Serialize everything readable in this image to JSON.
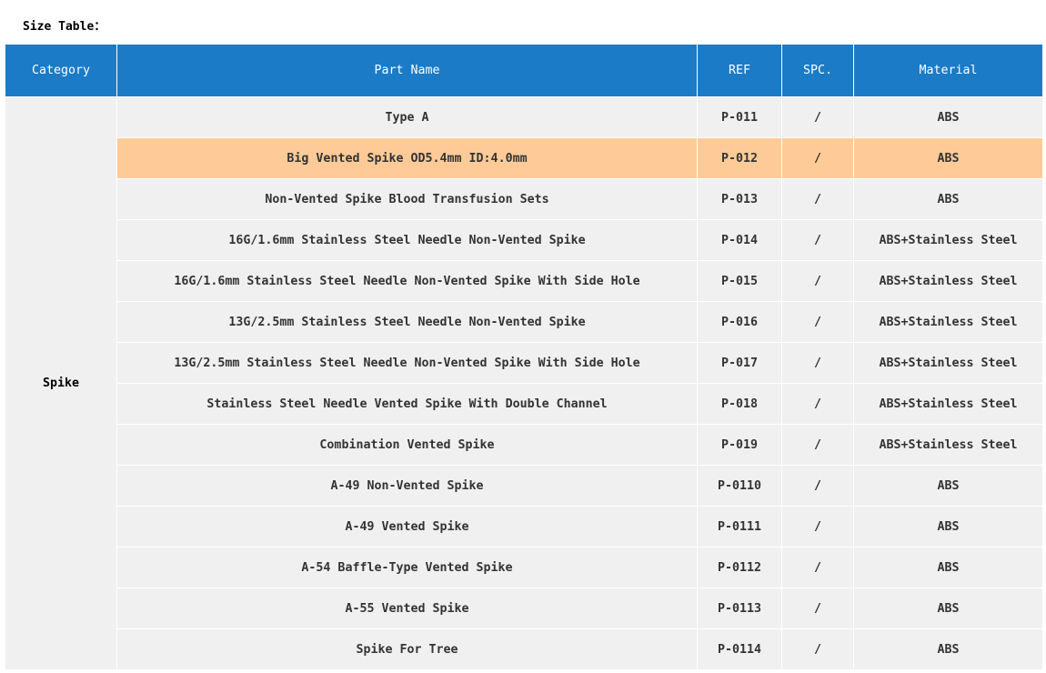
{
  "title": "Size Table：",
  "colors": {
    "header": "#1b7bc7",
    "highlight": "#fecb98",
    "cell": "#f0f0f0"
  },
  "headers": [
    "Category",
    "Part Name",
    "REF",
    "SPC.",
    "Material"
  ],
  "category": "Spike",
  "highlighted_row": 1,
  "rows": [
    {
      "name": "Type A",
      "ref": "P-011",
      "spc": "/",
      "material": "ABS"
    },
    {
      "name": "Big Vented Spike OD5.4mm ID:4.0mm",
      "ref": "P-012",
      "spc": "/",
      "material": "ABS"
    },
    {
      "name": "Non-Vented Spike Blood Transfusion Sets",
      "ref": "P-013",
      "spc": "/",
      "material": "ABS"
    },
    {
      "name": "16G/1.6mm Stainless Steel Needle Non-Vented Spike",
      "ref": "P-014",
      "spc": "/",
      "material": "ABS+Stainless Steel"
    },
    {
      "name": "16G/1.6mm Stainless Steel Needle Non-Vented Spike With Side Hole",
      "ref": "P-015",
      "spc": "/",
      "material": "ABS+Stainless Steel"
    },
    {
      "name": "13G/2.5mm Stainless Steel Needle Non-Vented Spike",
      "ref": "P-016",
      "spc": "/",
      "material": "ABS+Stainless Steel"
    },
    {
      "name": "13G/2.5mm Stainless Steel Needle Non-Vented Spike With Side Hole",
      "ref": "P-017",
      "spc": "/",
      "material": "ABS+Stainless Steel"
    },
    {
      "name": "Stainless Steel Needle Vented Spike With Double Channel",
      "ref": "P-018",
      "spc": "/",
      "material": "ABS+Stainless Steel"
    },
    {
      "name": "Combination Vented Spike",
      "ref": "P-019",
      "spc": "/",
      "material": "ABS+Stainless Steel"
    },
    {
      "name": "A-49 Non-Vented Spike",
      "ref": "P-0110",
      "spc": "/",
      "material": "ABS"
    },
    {
      "name": "A-49 Vented Spike",
      "ref": "P-0111",
      "spc": "/",
      "material": "ABS"
    },
    {
      "name": "A-54 Baffle-Type Vented Spike",
      "ref": "P-0112",
      "spc": "/",
      "material": "ABS"
    },
    {
      "name": "A-55 Vented Spike",
      "ref": "P-0113",
      "spc": "/",
      "material": "ABS"
    },
    {
      "name": "Spike For Tree",
      "ref": "P-0114",
      "spc": "/",
      "material": "ABS"
    }
  ]
}
